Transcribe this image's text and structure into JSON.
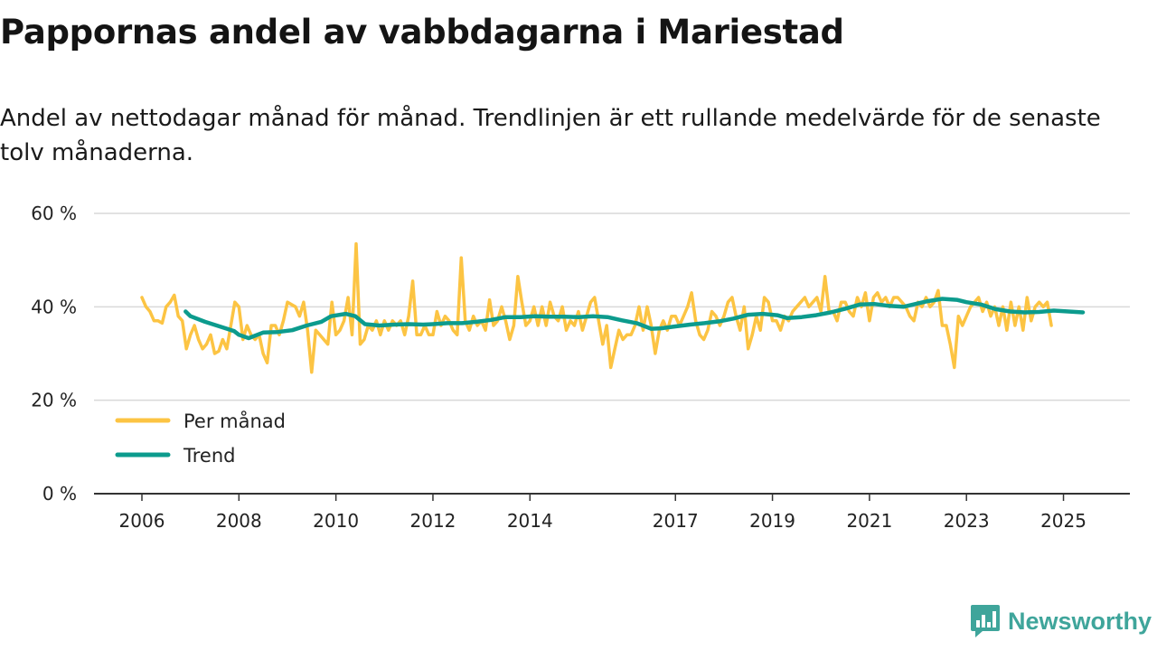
{
  "title": "Pappornas andel av vabbdagarna i Mariestad",
  "subtitle": "Andel av nettodagar månad för månad. Trendlinjen är ett rullande medelvärde för de senaste tolv månaderna.",
  "brand": {
    "name": "Newsworthy",
    "logo_icon": "bar-chart-speech-icon"
  },
  "colors": {
    "monthly": "#fcc443",
    "trend": "#0c9b8d",
    "grid": "#d9d9d9",
    "axis": "#333333",
    "brand": "#3fa59b"
  },
  "chart_data": {
    "type": "line",
    "title": "Pappornas andel av vabbdagarna i Mariestad",
    "xlabel": "",
    "ylabel": "",
    "x_range": [
      2006.0,
      2025.4
    ],
    "ylim": [
      0,
      60
    ],
    "y_ticks": [
      0,
      20,
      40,
      60
    ],
    "y_tick_labels": [
      "0 %",
      "20 %",
      "40 %",
      "60 %"
    ],
    "x_ticks": [
      2006,
      2008,
      2010,
      2012,
      2014,
      2017,
      2019,
      2021,
      2023,
      2025
    ],
    "x_tick_labels": [
      "2006",
      "2008",
      "2010",
      "2012",
      "2014",
      "2017",
      "2019",
      "2021",
      "2023",
      "2025"
    ],
    "legend": {
      "position": "bottom-left",
      "entries": [
        "Per månad",
        "Trend"
      ]
    },
    "series": [
      {
        "name": "Per månad",
        "start": 2006.0,
        "step": 0.0833333,
        "values": [
          42,
          40,
          39,
          37,
          37,
          36.5,
          40,
          41,
          42.5,
          38,
          37,
          31,
          34,
          36,
          33,
          31,
          32,
          34,
          30,
          30.5,
          33,
          31,
          36,
          41,
          40,
          33,
          36,
          34,
          33,
          34,
          30,
          28,
          36,
          36,
          34,
          37,
          41,
          40.5,
          40,
          38,
          41,
          35,
          26,
          35,
          34,
          33,
          32,
          41,
          34,
          35,
          37,
          42,
          34,
          53.5,
          32,
          33,
          36,
          35,
          37,
          34,
          37,
          35,
          37,
          36,
          37,
          34,
          38,
          45.5,
          34,
          34,
          36,
          34,
          34,
          39,
          36,
          38,
          37,
          35,
          34,
          50.5,
          37,
          35,
          38,
          36,
          37,
          35,
          41.5,
          36,
          37,
          40,
          37,
          33,
          36,
          46.5,
          41,
          36,
          37,
          40,
          36,
          40,
          36,
          41,
          38,
          37,
          40,
          35,
          37,
          36,
          39,
          35,
          38,
          41,
          42,
          37,
          32,
          36,
          27,
          31,
          35,
          33,
          34,
          34,
          36,
          40,
          35,
          40,
          36,
          30,
          35,
          37,
          35,
          38,
          38,
          36,
          38,
          40,
          43,
          37,
          34,
          33,
          35,
          39,
          38,
          36,
          38,
          41,
          42,
          38,
          35,
          40,
          31,
          34,
          38,
          35,
          42,
          41,
          37,
          37,
          35,
          38,
          37,
          39,
          40,
          41,
          42,
          40,
          41,
          42,
          39,
          46.5,
          39,
          39,
          37,
          41,
          41,
          39,
          38,
          42,
          40,
          43,
          37,
          42,
          43,
          41,
          42,
          40,
          42,
          42,
          41,
          40,
          38,
          37,
          41,
          40,
          42,
          40,
          41,
          43.5,
          36,
          36,
          32,
          27,
          38,
          36,
          38,
          40,
          41,
          42,
          39,
          41,
          38,
          40,
          36,
          40,
          35,
          41,
          36,
          40,
          35,
          42,
          37,
          40,
          41,
          40,
          41,
          36
        ]
      },
      {
        "name": "Trend",
        "points": [
          [
            2006.9,
            39
          ],
          [
            2007.0,
            38
          ],
          [
            2007.3,
            36.8
          ],
          [
            2007.6,
            35.8
          ],
          [
            2007.9,
            34.8
          ],
          [
            2008.0,
            34
          ],
          [
            2008.2,
            33.3
          ],
          [
            2008.5,
            34.5
          ],
          [
            2008.8,
            34.6
          ],
          [
            2009.1,
            35
          ],
          [
            2009.4,
            36
          ],
          [
            2009.7,
            36.8
          ],
          [
            2009.9,
            38
          ],
          [
            2010.2,
            38.5
          ],
          [
            2010.4,
            38
          ],
          [
            2010.6,
            36.3
          ],
          [
            2010.9,
            36
          ],
          [
            2011.2,
            36.2
          ],
          [
            2011.5,
            36.3
          ],
          [
            2011.8,
            36.2
          ],
          [
            2012.0,
            36.3
          ],
          [
            2012.3,
            36.5
          ],
          [
            2012.6,
            36.5
          ],
          [
            2012.9,
            36.8
          ],
          [
            2013.2,
            37.2
          ],
          [
            2013.5,
            37.8
          ],
          [
            2013.8,
            37.8
          ],
          [
            2014.1,
            38
          ],
          [
            2014.4,
            37.9
          ],
          [
            2014.7,
            37.9
          ],
          [
            2015.0,
            37.8
          ],
          [
            2015.3,
            38
          ],
          [
            2015.6,
            37.8
          ],
          [
            2015.9,
            37.1
          ],
          [
            2016.2,
            36.5
          ],
          [
            2016.5,
            35.3
          ],
          [
            2016.7,
            35.4
          ],
          [
            2017.0,
            35.8
          ],
          [
            2017.3,
            36.2
          ],
          [
            2017.6,
            36.5
          ],
          [
            2017.9,
            36.9
          ],
          [
            2018.2,
            37.5
          ],
          [
            2018.5,
            38.3
          ],
          [
            2018.8,
            38.5
          ],
          [
            2019.1,
            38.2
          ],
          [
            2019.3,
            37.6
          ],
          [
            2019.6,
            37.8
          ],
          [
            2019.9,
            38.2
          ],
          [
            2020.2,
            38.8
          ],
          [
            2020.5,
            39.6
          ],
          [
            2020.8,
            40.5
          ],
          [
            2021.1,
            40.6
          ],
          [
            2021.4,
            40.2
          ],
          [
            2021.7,
            40
          ],
          [
            2021.9,
            40.5
          ],
          [
            2022.2,
            41.2
          ],
          [
            2022.5,
            41.7
          ],
          [
            2022.8,
            41.5
          ],
          [
            2023.0,
            41
          ],
          [
            2023.3,
            40.5
          ],
          [
            2023.6,
            39.5
          ],
          [
            2023.9,
            39
          ],
          [
            2024.2,
            38.8
          ],
          [
            2024.5,
            38.9
          ],
          [
            2024.8,
            39.2
          ],
          [
            2025.1,
            39
          ],
          [
            2025.4,
            38.8
          ]
        ]
      }
    ]
  }
}
